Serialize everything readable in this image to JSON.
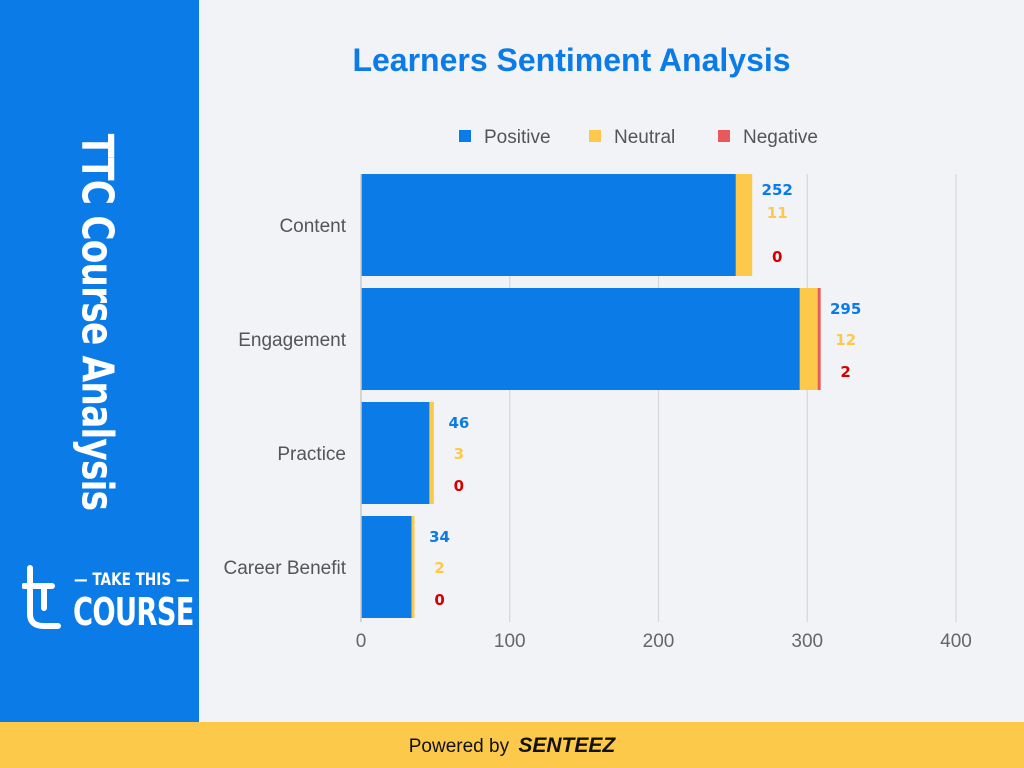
{
  "sidebar": {
    "title": "TTC Course Analysis",
    "logo": {
      "line1": "TAKE THIS",
      "line2": "COURSE",
      "icon": "t-logo-icon"
    },
    "color": "#0b7be8"
  },
  "footer": {
    "prefix": "Powered by",
    "brand": "SENTEEZ",
    "color": "#fdc94a"
  },
  "chart_data": {
    "type": "bar",
    "orientation": "horizontal",
    "stacked": true,
    "title": "Learners Sentiment Analysis",
    "categories": [
      "Content",
      "Engagement",
      "Practice",
      "Career Benefit"
    ],
    "series": [
      {
        "name": "Positive",
        "color": "#0b7be8",
        "values": [
          252,
          295,
          46,
          34
        ]
      },
      {
        "name": "Neutral",
        "color": "#fdc94a",
        "values": [
          11,
          12,
          3,
          2
        ]
      },
      {
        "name": "Negative",
        "color": "#e9585b",
        "label_color": "#d40000",
        "values": [
          0,
          2,
          0,
          0
        ]
      }
    ],
    "xlim": [
      0,
      400
    ],
    "xticks": [
      0,
      100,
      200,
      300,
      400
    ],
    "grid": true,
    "legend": "top"
  }
}
